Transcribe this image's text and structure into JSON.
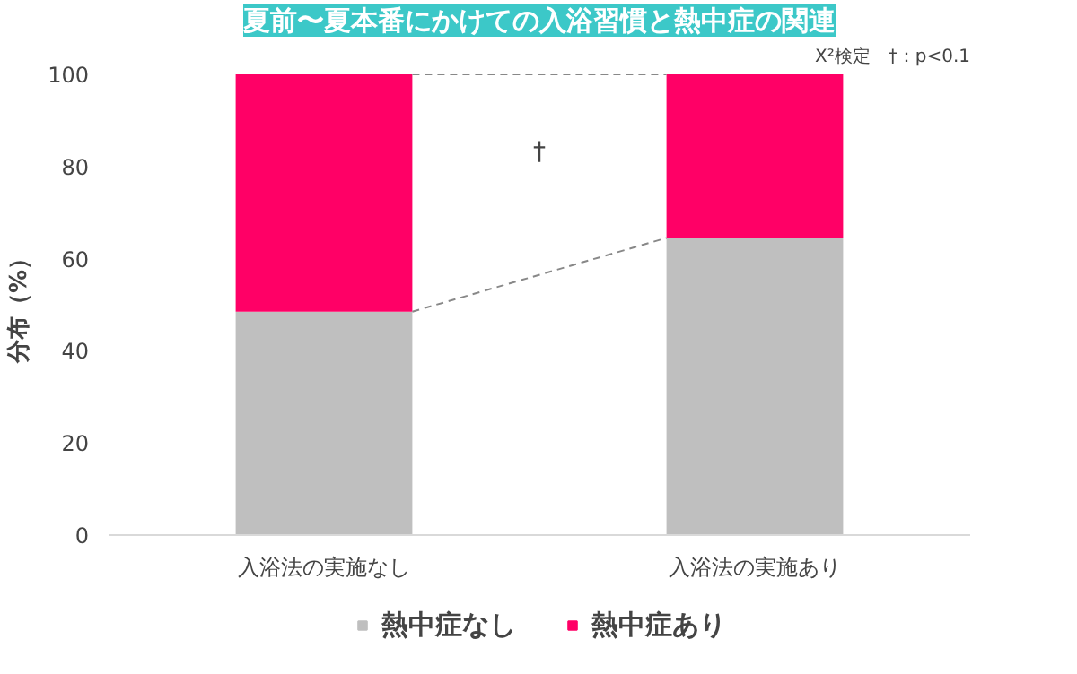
{
  "chart_data": {
    "type": "bar",
    "title": "夏前〜夏本番にかけての入浴習慣と熱中症の関連",
    "ylabel": "分布（%）",
    "categories": [
      "入浴法の実施なし",
      "入浴法の実施あり"
    ],
    "stacked": true,
    "series": [
      {
        "name": "熱中症なし",
        "color": "#bfbfbf",
        "values": [
          48.5,
          64.5
        ]
      },
      {
        "name": "熱中症あり",
        "color": "#ff0066",
        "values": [
          51.5,
          35.5
        ]
      }
    ],
    "ylim": [
      0,
      100
    ],
    "yticks": [
      0,
      20,
      40,
      60,
      80,
      100
    ],
    "grid": false,
    "legend": "bottom",
    "annotations": [
      "X²検定　†：p<0.1",
      "†"
    ]
  }
}
